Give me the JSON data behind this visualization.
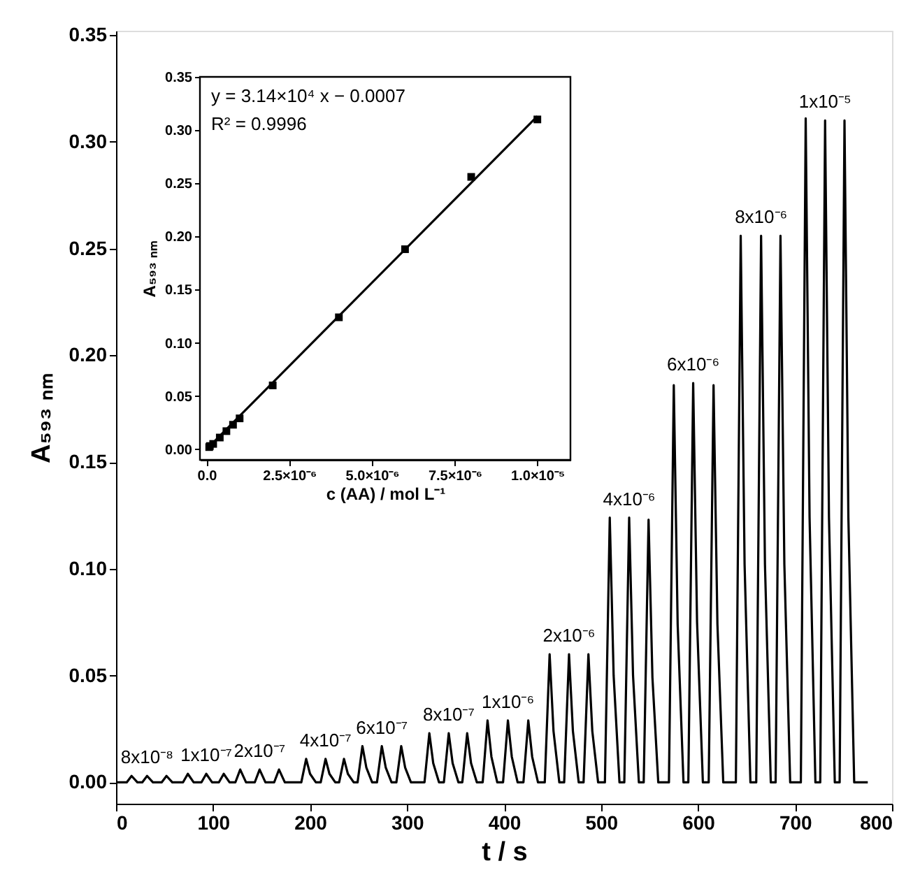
{
  "chart_data": [
    {
      "type": "line",
      "xlabel": "t / s",
      "ylabel": "A₅₉₃ ₙₘ",
      "color": "#000000",
      "grid": false,
      "x": [
        0,
        11,
        16,
        22,
        27,
        32,
        38,
        47,
        52,
        58,
        69,
        74,
        80,
        88,
        93,
        99,
        106,
        111,
        117,
        123,
        128,
        134,
        143,
        148,
        154,
        163,
        168,
        174,
        191,
        196,
        200,
        206,
        211,
        216,
        220,
        226,
        230,
        235,
        239,
        245,
        249,
        254,
        258,
        264,
        269,
        274,
        278,
        284,
        289,
        294,
        298,
        304,
        318,
        323,
        327,
        333,
        338,
        343,
        347,
        353,
        357,
        362,
        366,
        372,
        378,
        383,
        387,
        393,
        399,
        404,
        408,
        414,
        420,
        425,
        429,
        435,
        442,
        447,
        451,
        457,
        462,
        467,
        471,
        477,
        482,
        487,
        491,
        497,
        504,
        509,
        513,
        519,
        524,
        529,
        533,
        539,
        544,
        549,
        553,
        559,
        570,
        575,
        579,
        585,
        590,
        595,
        599,
        605,
        611,
        616,
        620,
        626,
        639,
        644,
        648,
        654,
        660,
        665,
        669,
        675,
        680,
        685,
        689,
        695,
        706,
        711,
        715,
        721,
        726,
        731,
        735,
        741,
        746,
        751,
        755,
        761,
        775
      ],
      "values": [
        0,
        0,
        0.003,
        0,
        0,
        0.003,
        0,
        0,
        0.003,
        0,
        0,
        0.004,
        0,
        0,
        0.004,
        0,
        0,
        0.004,
        0,
        0,
        0.006,
        0,
        0,
        0.006,
        0,
        0,
        0.006,
        0,
        0,
        0.011,
        0.004,
        0,
        0,
        0.011,
        0.004,
        0,
        0,
        0.011,
        0.004,
        0,
        0,
        0.017,
        0.007,
        0,
        0,
        0.017,
        0.007,
        0,
        0,
        0.017,
        0.007,
        0,
        0,
        0.023,
        0.009,
        0,
        0,
        0.023,
        0.009,
        0,
        0,
        0.023,
        0.009,
        0,
        0,
        0.029,
        0.012,
        0,
        0,
        0.029,
        0.012,
        0,
        0,
        0.029,
        0.012,
        0,
        0,
        0.06,
        0.024,
        0,
        0,
        0.06,
        0.024,
        0,
        0,
        0.06,
        0.024,
        0,
        0,
        0.124,
        0.05,
        0,
        0,
        0.124,
        0.05,
        0,
        0,
        0.123,
        0.049,
        0,
        0,
        0.186,
        0.074,
        0,
        0,
        0.187,
        0.075,
        0,
        0,
        0.186,
        0.074,
        0,
        0,
        0.256,
        0.102,
        0,
        0,
        0.256,
        0.102,
        0,
        0,
        0.256,
        0.102,
        0,
        0,
        0.311,
        0.124,
        0,
        0,
        0.31,
        0.124,
        0,
        0,
        0.31,
        0.124,
        0,
        0
      ],
      "xlim": [
        0,
        800
      ],
      "xticks": [
        0,
        100,
        200,
        300,
        400,
        500,
        600,
        700,
        800
      ],
      "ylim": [
        -0.01,
        0.352
      ],
      "yticks": [
        {
          "value": 0,
          "label": "0.00"
        },
        {
          "value": 0.05,
          "label": "0.05"
        },
        {
          "value": 0.1,
          "label": "0.10"
        },
        {
          "value": 0.15,
          "label": "0.15"
        },
        {
          "value": 0.2,
          "label": "0.20"
        },
        {
          "value": 0.25,
          "label": "0.25"
        },
        {
          "value": 0.3,
          "label": "0.30"
        },
        {
          "value": 0.35,
          "label": "0.35"
        }
      ],
      "annotations": [
        {
          "text": "8x10⁻⁸",
          "x": 32,
          "y": 0.003
        },
        {
          "text": "1x10⁻⁷",
          "x": 93,
          "y": 0.004
        },
        {
          "text": "2x10⁻⁷",
          "x": 148,
          "y": 0.006
        },
        {
          "text": "4x10⁻⁷",
          "x": 216,
          "y": 0.011
        },
        {
          "text": "6x10⁻⁷",
          "x": 274,
          "y": 0.017
        },
        {
          "text": "8x10⁻⁷",
          "x": 343,
          "y": 0.023
        },
        {
          "text": "1x10⁻⁶",
          "x": 404,
          "y": 0.029
        },
        {
          "text": "2x10⁻⁶",
          "x": 467,
          "y": 0.06
        },
        {
          "text": "4x10⁻⁶",
          "x": 529,
          "y": 0.124
        },
        {
          "text": "6x10⁻⁶",
          "x": 595,
          "y": 0.187
        },
        {
          "text": "8x10⁻⁶",
          "x": 665,
          "y": 0.256
        },
        {
          "text": "1x10⁻⁵",
          "x": 731,
          "y": 0.31
        }
      ]
    },
    {
      "type": "scatter",
      "xlabel": "c (AA) / mol L⁻¹",
      "ylabel": "A₅₉₃ ₙₘ",
      "grid": false,
      "series": [
        {
          "type": "scatter",
          "marker": "square",
          "color": "#000000",
          "x": [
            8e-08,
            1e-07,
            2e-07,
            4e-07,
            6e-07,
            8e-07,
            1e-06,
            2e-06,
            4e-06,
            6e-06,
            8e-06,
            1e-05
          ],
          "values": [
            0.002,
            0.003,
            0.005,
            0.011,
            0.017,
            0.023,
            0.029,
            0.06,
            0.124,
            0.188,
            0.256,
            0.31
          ]
        },
        {
          "type": "line",
          "color": "#000000",
          "x": [
            0,
            1e-05
          ],
          "values": [
            0,
            0.313
          ]
        }
      ],
      "xlim": [
        -2e-07,
        1.1e-05
      ],
      "xticks": [
        {
          "value": 0,
          "label": "0.0"
        },
        {
          "value": 2.5e-06,
          "label": "2.5×10⁻⁶"
        },
        {
          "value": 5e-06,
          "label": "5.0×10⁻⁶"
        },
        {
          "value": 7.5e-06,
          "label": "7.5×10⁻⁶"
        },
        {
          "value": 1e-05,
          "label": "1.0×10⁻⁵"
        }
      ],
      "ylim": [
        -0.01,
        0.35
      ],
      "yticks": [
        {
          "value": 0,
          "label": "0.00"
        },
        {
          "value": 0.05,
          "label": "0.05"
        },
        {
          "value": 0.1,
          "label": "0.10"
        },
        {
          "value": 0.15,
          "label": "0.15"
        },
        {
          "value": 0.2,
          "label": "0.20"
        },
        {
          "value": 0.25,
          "label": "0.25"
        },
        {
          "value": 0.3,
          "label": "0.30"
        },
        {
          "value": 0.35,
          "label": "0.35"
        }
      ],
      "annotations": [
        "y = 3.14×10⁴ x − 0.0007",
        "R² = 0.9996"
      ]
    }
  ]
}
